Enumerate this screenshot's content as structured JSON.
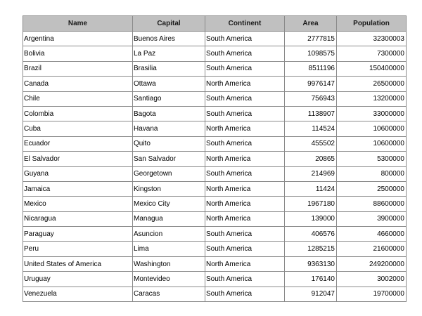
{
  "table": {
    "columns": [
      "Name",
      "Capital",
      "Continent",
      "Area",
      "Population"
    ],
    "rows": [
      [
        "Argentina",
        "Buenos Aires",
        "South America",
        "2777815",
        "32300003"
      ],
      [
        "Bolivia",
        "La Paz",
        "South America",
        "1098575",
        "7300000"
      ],
      [
        "Brazil",
        "Brasilia",
        "South America",
        "8511196",
        "150400000"
      ],
      [
        "Canada",
        "Ottawa",
        "North America",
        "9976147",
        "26500000"
      ],
      [
        "Chile",
        "Santiago",
        "South America",
        "756943",
        "13200000"
      ],
      [
        "Colombia",
        "Bagota",
        "South America",
        "1138907",
        "33000000"
      ],
      [
        "Cuba",
        "Havana",
        "North America",
        "114524",
        "10600000"
      ],
      [
        "Ecuador",
        "Quito",
        "South America",
        "455502",
        "10600000"
      ],
      [
        "El Salvador",
        "San Salvador",
        "North America",
        "20865",
        "5300000"
      ],
      [
        "Guyana",
        "Georgetown",
        "South America",
        "214969",
        "800000"
      ],
      [
        "Jamaica",
        "Kingston",
        "North America",
        "11424",
        "2500000"
      ],
      [
        "Mexico",
        "Mexico City",
        "North America",
        "1967180",
        "88600000"
      ],
      [
        "Nicaragua",
        "Managua",
        "North America",
        "139000",
        "3900000"
      ],
      [
        "Paraguay",
        "Asuncion",
        "South America",
        "406576",
        "4660000"
      ],
      [
        "Peru",
        "Lima",
        "South America",
        "1285215",
        "21600000"
      ],
      [
        "United States of America",
        "Washington",
        "North America",
        "9363130",
        "249200000"
      ],
      [
        "Uruguay",
        "Montevideo",
        "South America",
        "176140",
        "3002000"
      ],
      [
        "Venezuela",
        "Caracas",
        "South America",
        "912047",
        "19700000"
      ]
    ]
  }
}
